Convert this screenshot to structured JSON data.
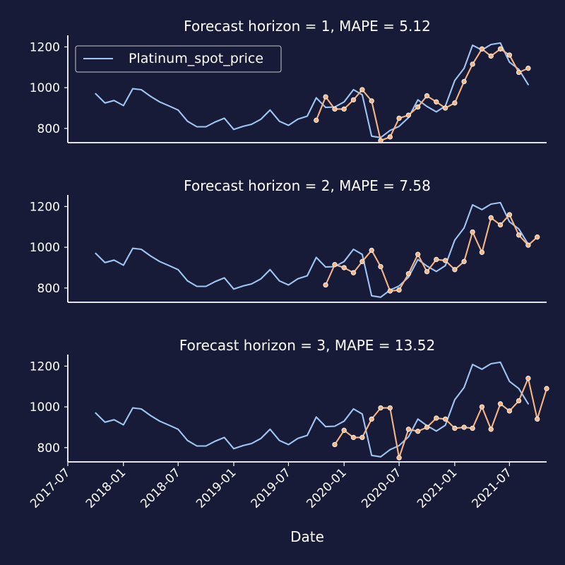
{
  "colors": {
    "background": "#181b37",
    "actual": "#9ec5f4",
    "forecast": "#f7b584",
    "axis": "#ffffff",
    "text": "#ffffff"
  },
  "xlabel": "Date",
  "x_tick_labels": [
    "2017-07",
    "2018-01",
    "2018-07",
    "2019-01",
    "2019-07",
    "2020-01",
    "2020-07",
    "2021-01",
    "2021-07"
  ],
  "legend": {
    "label": "Platinum_spot_price",
    "placement": "upper-left"
  },
  "chart_data": [
    {
      "type": "line",
      "title": "Forecast horizon = 1, MAPE = 5.12",
      "xlabel": "",
      "ylabel": "",
      "xlim": [
        "2017-07-01",
        "2021-11-01"
      ],
      "ylim": [
        730,
        1250
      ],
      "yticks": [
        800,
        1000,
        1200
      ],
      "grid": false,
      "legend": true,
      "series": [
        {
          "name": "Platinum_spot_price",
          "x": [
            "2017-10-01",
            "2017-11-01",
            "2017-12-01",
            "2018-01-01",
            "2018-02-01",
            "2018-03-01",
            "2018-04-01",
            "2018-05-01",
            "2018-06-01",
            "2018-07-01",
            "2018-08-01",
            "2018-09-01",
            "2018-10-01",
            "2018-11-01",
            "2018-12-01",
            "2019-01-01",
            "2019-02-01",
            "2019-03-01",
            "2019-04-01",
            "2019-05-01",
            "2019-06-01",
            "2019-07-01",
            "2019-08-01",
            "2019-09-01",
            "2019-10-01",
            "2019-11-01",
            "2019-12-01",
            "2020-01-01",
            "2020-02-01",
            "2020-03-01",
            "2020-04-01",
            "2020-05-01",
            "2020-06-01",
            "2020-07-01",
            "2020-08-01",
            "2020-09-01",
            "2020-10-01",
            "2020-11-01",
            "2020-12-01",
            "2021-01-01",
            "2021-02-01",
            "2021-03-01",
            "2021-04-01",
            "2021-05-01",
            "2021-06-01",
            "2021-07-01",
            "2021-08-01",
            "2021-09-01"
          ],
          "values": [
            970,
            925,
            937,
            912,
            995,
            990,
            957,
            930,
            910,
            890,
            835,
            808,
            808,
            832,
            850,
            795,
            810,
            820,
            845,
            890,
            835,
            815,
            845,
            860,
            950,
            903,
            905,
            930,
            990,
            965,
            762,
            755,
            790,
            810,
            853,
            940,
            908,
            881,
            910,
            1035,
            1095,
            1208,
            1185,
            1212,
            1219,
            1125,
            1090,
            1015
          ]
        },
        {
          "name": "",
          "x": [
            "2019-10-01",
            "2019-11-01",
            "2019-12-01",
            "2020-01-01",
            "2020-02-01",
            "2020-03-01",
            "2020-04-01",
            "2020-05-01",
            "2020-06-01",
            "2020-07-01",
            "2020-08-01",
            "2020-09-01",
            "2020-10-01",
            "2020-11-01",
            "2020-12-01",
            "2021-01-01",
            "2021-02-01",
            "2021-03-01",
            "2021-04-01",
            "2021-05-01",
            "2021-06-01",
            "2021-07-01",
            "2021-08-01",
            "2021-09-01"
          ],
          "values": [
            840,
            955,
            895,
            895,
            940,
            990,
            935,
            740,
            758,
            850,
            865,
            905,
            960,
            930,
            900,
            925,
            1030,
            1115,
            1190,
            1155,
            1190,
            1160,
            1075,
            1095
          ]
        }
      ]
    },
    {
      "type": "line",
      "title": "Forecast horizon = 2, MAPE = 7.58",
      "xlabel": "",
      "ylabel": "",
      "xlim": [
        "2017-07-01",
        "2021-11-01"
      ],
      "ylim": [
        730,
        1250
      ],
      "yticks": [
        800,
        1000,
        1200
      ],
      "grid": false,
      "legend": false,
      "series": [
        {
          "name": "Platinum_spot_price",
          "x": [
            "2017-10-01",
            "2017-11-01",
            "2017-12-01",
            "2018-01-01",
            "2018-02-01",
            "2018-03-01",
            "2018-04-01",
            "2018-05-01",
            "2018-06-01",
            "2018-07-01",
            "2018-08-01",
            "2018-09-01",
            "2018-10-01",
            "2018-11-01",
            "2018-12-01",
            "2019-01-01",
            "2019-02-01",
            "2019-03-01",
            "2019-04-01",
            "2019-05-01",
            "2019-06-01",
            "2019-07-01",
            "2019-08-01",
            "2019-09-01",
            "2019-10-01",
            "2019-11-01",
            "2019-12-01",
            "2020-01-01",
            "2020-02-01",
            "2020-03-01",
            "2020-04-01",
            "2020-05-01",
            "2020-06-01",
            "2020-07-01",
            "2020-08-01",
            "2020-09-01",
            "2020-10-01",
            "2020-11-01",
            "2020-12-01",
            "2021-01-01",
            "2021-02-01",
            "2021-03-01",
            "2021-04-01",
            "2021-05-01",
            "2021-06-01",
            "2021-07-01",
            "2021-08-01",
            "2021-09-01"
          ],
          "values": [
            970,
            925,
            937,
            912,
            995,
            990,
            957,
            930,
            910,
            890,
            835,
            808,
            808,
            832,
            850,
            795,
            810,
            820,
            845,
            890,
            835,
            815,
            845,
            860,
            950,
            903,
            905,
            930,
            990,
            965,
            762,
            755,
            790,
            810,
            853,
            940,
            908,
            881,
            910,
            1035,
            1095,
            1208,
            1185,
            1212,
            1219,
            1125,
            1090,
            1015
          ]
        },
        {
          "name": "",
          "x": [
            "2019-11-01",
            "2019-12-01",
            "2020-01-01",
            "2020-02-01",
            "2020-03-01",
            "2020-04-01",
            "2020-05-01",
            "2020-06-01",
            "2020-07-01",
            "2020-08-01",
            "2020-09-01",
            "2020-10-01",
            "2020-11-01",
            "2020-12-01",
            "2021-01-01",
            "2021-02-01",
            "2021-03-01",
            "2021-04-01",
            "2021-05-01",
            "2021-06-01",
            "2021-07-01",
            "2021-08-01",
            "2021-09-01",
            "2021-10-01"
          ],
          "values": [
            815,
            915,
            900,
            875,
            930,
            985,
            905,
            785,
            790,
            870,
            965,
            880,
            940,
            935,
            890,
            930,
            1075,
            975,
            1145,
            1110,
            1160,
            1060,
            1010,
            1050
          ]
        }
      ]
    },
    {
      "type": "line",
      "title": "Forecast horizon = 3, MAPE = 13.52",
      "xlabel": "Date",
      "ylabel": "",
      "xlim": [
        "2017-07-01",
        "2021-11-01"
      ],
      "ylim": [
        730,
        1250
      ],
      "yticks": [
        800,
        1000,
        1200
      ],
      "grid": false,
      "legend": false,
      "series": [
        {
          "name": "Platinum_spot_price",
          "x": [
            "2017-10-01",
            "2017-11-01",
            "2017-12-01",
            "2018-01-01",
            "2018-02-01",
            "2018-03-01",
            "2018-04-01",
            "2018-05-01",
            "2018-06-01",
            "2018-07-01",
            "2018-08-01",
            "2018-09-01",
            "2018-10-01",
            "2018-11-01",
            "2018-12-01",
            "2019-01-01",
            "2019-02-01",
            "2019-03-01",
            "2019-04-01",
            "2019-05-01",
            "2019-06-01",
            "2019-07-01",
            "2019-08-01",
            "2019-09-01",
            "2019-10-01",
            "2019-11-01",
            "2019-12-01",
            "2020-01-01",
            "2020-02-01",
            "2020-03-01",
            "2020-04-01",
            "2020-05-01",
            "2020-06-01",
            "2020-07-01",
            "2020-08-01",
            "2020-09-01",
            "2020-10-01",
            "2020-11-01",
            "2020-12-01",
            "2021-01-01",
            "2021-02-01",
            "2021-03-01",
            "2021-04-01",
            "2021-05-01",
            "2021-06-01",
            "2021-07-01",
            "2021-08-01",
            "2021-09-01"
          ],
          "values": [
            970,
            925,
            937,
            912,
            995,
            990,
            957,
            930,
            910,
            890,
            835,
            808,
            808,
            832,
            850,
            795,
            810,
            820,
            845,
            890,
            835,
            815,
            845,
            860,
            950,
            903,
            905,
            930,
            990,
            965,
            762,
            755,
            790,
            810,
            853,
            940,
            908,
            881,
            910,
            1035,
            1095,
            1208,
            1185,
            1212,
            1219,
            1125,
            1090,
            1015
          ]
        },
        {
          "name": "",
          "x": [
            "2019-12-01",
            "2020-01-01",
            "2020-02-01",
            "2020-03-01",
            "2020-04-01",
            "2020-05-01",
            "2020-06-01",
            "2020-07-01",
            "2020-08-01",
            "2020-09-01",
            "2020-10-01",
            "2020-11-01",
            "2020-12-01",
            "2021-01-01",
            "2021-02-01",
            "2021-03-01",
            "2021-04-01",
            "2021-05-01",
            "2021-06-01",
            "2021-07-01",
            "2021-08-01",
            "2021-09-01",
            "2021-10-01",
            "2021-11-01"
          ],
          "values": [
            815,
            885,
            850,
            850,
            940,
            995,
            995,
            750,
            890,
            880,
            900,
            945,
            940,
            895,
            900,
            895,
            1000,
            890,
            1015,
            980,
            1030,
            1140,
            940,
            1090
          ]
        }
      ]
    }
  ]
}
